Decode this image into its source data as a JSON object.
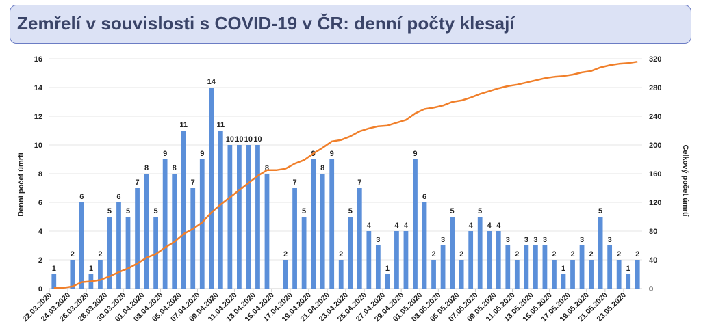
{
  "header": {
    "title": "Zemřelí v souvislosti s COVID-19 v ČR: denní počty klesají"
  },
  "chart_data": {
    "type": "bar+line",
    "title": "Zemřelí v souvislosti s COVID-19 v ČR: denní počty klesají",
    "ylabel": "Denní počet úmrtí",
    "y2label": "Celkový počet úmrtí",
    "ylim": [
      0,
      16
    ],
    "y2lim": [
      0,
      320
    ],
    "yticks": [
      0,
      2,
      4,
      6,
      8,
      10,
      12,
      14,
      16
    ],
    "y2ticks": [
      0,
      40,
      80,
      120,
      160,
      200,
      240,
      280,
      320
    ],
    "grid": true,
    "x_tick_labels": [
      "22.03.2020",
      "24.03.2020",
      "26.03.2020",
      "28.03.2020",
      "30.03.2020",
      "01.04.2020",
      "03.04.2020",
      "05.04.2020",
      "07.04.2020",
      "09.04.2020",
      "11.04.2020",
      "13.04.2020",
      "15.04.2020",
      "17.04.2020",
      "19.04.2020",
      "21.04.2020",
      "23.04.2020",
      "25.04.2020",
      "27.04.2020",
      "29.04.2020",
      "01.05.2020",
      "03.05.2020",
      "05.05.2020",
      "07.05.2020",
      "09.05.2020",
      "11.05.2020",
      "13.05.2020",
      "15.05.2020",
      "17.05.2020",
      "19.05.2020",
      "21.05.2020",
      "23.05.2020"
    ],
    "series": [
      {
        "name": "Denní počet úmrtí",
        "type": "bar",
        "axis": "left",
        "values": [
          1,
          0,
          2,
          6,
          1,
          2,
          5,
          6,
          5,
          7,
          8,
          5,
          9,
          8,
          11,
          7,
          9,
          14,
          11,
          10,
          10,
          10,
          10,
          8,
          0,
          2,
          7,
          5,
          9,
          8,
          9,
          2,
          5,
          7,
          4,
          3,
          1,
          4,
          4,
          9,
          6,
          2,
          3,
          5,
          2,
          4,
          5,
          4,
          4,
          3,
          2,
          3,
          3,
          3,
          2,
          1,
          2,
          3,
          2,
          5,
          3,
          2,
          1,
          2
        ]
      },
      {
        "name": "Celkový počet úmrtí",
        "type": "line",
        "axis": "right",
        "cumulative_of": "Denní počet úmrtí"
      }
    ],
    "colors": {
      "bar": "#5b8fd9",
      "line": "#f07f2a",
      "grid": "#e4e4e4"
    }
  }
}
